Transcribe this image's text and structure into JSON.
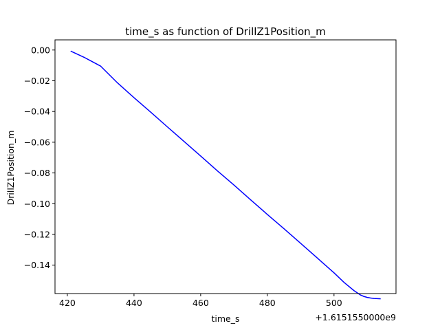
{
  "chart_data": {
    "type": "line",
    "title": "time_s as function of DrillZ1Position_m",
    "xlabel": "time_s",
    "ylabel": "DrillZ1Position_m",
    "x_offset_label": "+1.6151550000e9",
    "xlim": [
      416.3,
      518.6
    ],
    "ylim": [
      -0.1585,
      0.0066
    ],
    "xticks": [
      420,
      440,
      460,
      480,
      500
    ],
    "xtick_labels": [
      "420",
      "440",
      "460",
      "480",
      "500"
    ],
    "yticks": [
      0.0,
      -0.02,
      -0.04,
      -0.06,
      -0.08,
      -0.1,
      -0.12,
      -0.14
    ],
    "ytick_labels": [
      "0.00",
      "−0.02",
      "−0.04",
      "−0.06",
      "−0.08",
      "−0.10",
      "−0.12",
      "−0.14"
    ],
    "grid": false,
    "series": [
      {
        "color": "#0000ff",
        "x": [
          421.0,
          423.0,
          425.0,
          427.0,
          430.0,
          435.0,
          440.0,
          445.0,
          450.0,
          455.0,
          460.0,
          465.0,
          470.0,
          475.0,
          480.0,
          485.0,
          490.0,
          495.0,
          500.0,
          503.0,
          506.0,
          508.0,
          509.0,
          510.0,
          511.0,
          512.0,
          513.0,
          514.0
        ],
        "y": [
          -0.0007,
          -0.0027,
          -0.0047,
          -0.007,
          -0.0105,
          -0.0213,
          -0.031,
          -0.0404,
          -0.05,
          -0.0595,
          -0.069,
          -0.0786,
          -0.0879,
          -0.0975,
          -0.107,
          -0.1163,
          -0.1258,
          -0.1354,
          -0.145,
          -0.1512,
          -0.1566,
          -0.1595,
          -0.1604,
          -0.161,
          -0.1614,
          -0.1617,
          -0.1618,
          -0.1619
        ]
      }
    ]
  }
}
